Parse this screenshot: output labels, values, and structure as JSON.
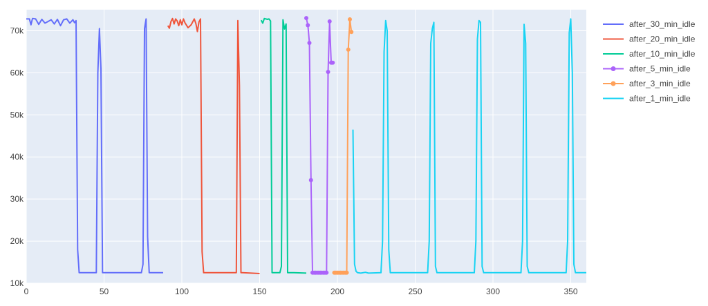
{
  "chart_data": {
    "type": "line",
    "title": "",
    "xlabel": "",
    "ylabel": "",
    "xlim": [
      0,
      360
    ],
    "ylim": [
      10000,
      75000
    ],
    "x_ticks": [
      0,
      50,
      100,
      150,
      200,
      250,
      300,
      350
    ],
    "x_tick_labels": [
      "0",
      "50",
      "100",
      "150",
      "200",
      "250",
      "300",
      "350"
    ],
    "y_ticks": [
      10000,
      20000,
      30000,
      40000,
      50000,
      60000,
      70000
    ],
    "y_tick_labels": [
      "10k",
      "20k",
      "30k",
      "40k",
      "50k",
      "60k",
      "70k"
    ],
    "grid": true,
    "legend_position": "right",
    "series": [
      {
        "name": "after_30_min_idle",
        "color": "#636efa",
        "markers": false,
        "x": [
          0,
          2,
          3,
          4,
          6,
          8,
          10,
          12,
          14,
          16,
          18,
          20,
          22,
          24,
          26,
          28,
          30,
          31,
          32,
          33,
          34,
          36,
          45,
          46,
          47,
          48,
          49,
          50,
          60,
          70,
          74,
          75,
          76,
          77,
          78,
          79,
          88
        ],
        "y": [
          72800,
          72800,
          71400,
          72900,
          72800,
          71500,
          72700,
          71800,
          72200,
          72600,
          71600,
          72700,
          71200,
          72600,
          72800,
          71800,
          72600,
          71900,
          72400,
          18000,
          12500,
          12500,
          12500,
          60000,
          70500,
          61000,
          12500,
          12500,
          12500,
          12500,
          12500,
          14500,
          70500,
          72800,
          21000,
          12500,
          12500
        ]
      },
      {
        "name": "after_20_min_idle",
        "color": "#ef553b",
        "markers": false,
        "x": [
          91,
          92,
          93,
          94,
          95,
          96,
          97,
          98,
          99,
          100,
          101,
          102,
          104,
          106,
          108,
          109,
          110,
          111,
          112,
          113,
          114,
          115,
          120,
          130,
          134,
          135,
          136,
          137,
          138,
          139,
          150
        ],
        "y": [
          71200,
          70600,
          72200,
          72900,
          71600,
          72800,
          72300,
          71200,
          72600,
          71400,
          72800,
          71900,
          70700,
          71400,
          72800,
          71700,
          69800,
          72100,
          72800,
          17500,
          12500,
          12500,
          12500,
          12500,
          12500,
          12500,
          72400,
          57000,
          12500,
          12500,
          12300
        ]
      },
      {
        "name": "after_10_min_idle",
        "color": "#00cc96",
        "markers": false,
        "x": [
          151,
          152,
          153,
          155,
          156,
          157,
          158,
          159,
          160,
          163,
          164,
          165,
          166,
          167,
          168,
          169,
          172,
          180
        ],
        "y": [
          72500,
          71800,
          72900,
          72700,
          72800,
          72300,
          12500,
          12500,
          12500,
          12500,
          14000,
          72600,
          70400,
          71600,
          12500,
          12500,
          12500,
          12400
        ]
      },
      {
        "name": "after_5_min_idle",
        "color": "#ab63fa",
        "markers": true,
        "x": [
          180,
          181,
          182,
          183,
          184,
          185,
          186,
          187,
          188,
          189,
          190,
          191,
          192,
          193,
          194,
          195,
          196,
          197
        ],
        "y": [
          73000,
          71300,
          67100,
          34500,
          12500,
          12500,
          12500,
          12500,
          12500,
          12500,
          12500,
          12500,
          12500,
          12500,
          60200,
          72200,
          62400,
          62400
        ]
      },
      {
        "name": "after_3_min_idle",
        "color": "#ffa15a",
        "markers": true,
        "x": [
          198,
          199,
          200,
          201,
          202,
          203,
          204,
          205,
          206,
          207,
          208,
          209
        ],
        "y": [
          12500,
          12500,
          12500,
          12500,
          12500,
          12500,
          12500,
          12500,
          12500,
          65500,
          72700,
          69700
        ]
      },
      {
        "name": "after_1_min_idle",
        "color": "#19d3f3",
        "markers": false,
        "x": [
          210,
          211,
          212,
          213,
          215,
          218,
          220,
          228,
          229,
          230,
          231,
          232,
          233,
          234,
          240,
          250,
          258,
          259,
          260,
          261,
          262,
          263,
          264,
          270,
          280,
          288,
          289,
          290,
          291,
          292,
          293,
          294,
          300,
          310,
          318,
          319,
          320,
          321,
          322,
          323,
          324,
          330,
          340,
          347,
          348,
          349,
          350,
          351,
          352,
          353,
          360
        ],
        "y": [
          46500,
          14500,
          12800,
          12500,
          12400,
          12600,
          12400,
          12500,
          20000,
          65000,
          72400,
          70000,
          18000,
          12500,
          12500,
          12500,
          12500,
          20000,
          67000,
          70500,
          72000,
          14000,
          12500,
          12500,
          12500,
          12500,
          20000,
          68000,
          72400,
          72000,
          14000,
          12500,
          12500,
          12500,
          12500,
          20000,
          71500,
          67000,
          14000,
          12500,
          12500,
          12500,
          12500,
          12500,
          20000,
          69500,
          72800,
          60000,
          14500,
          12500,
          12500
        ]
      }
    ]
  }
}
